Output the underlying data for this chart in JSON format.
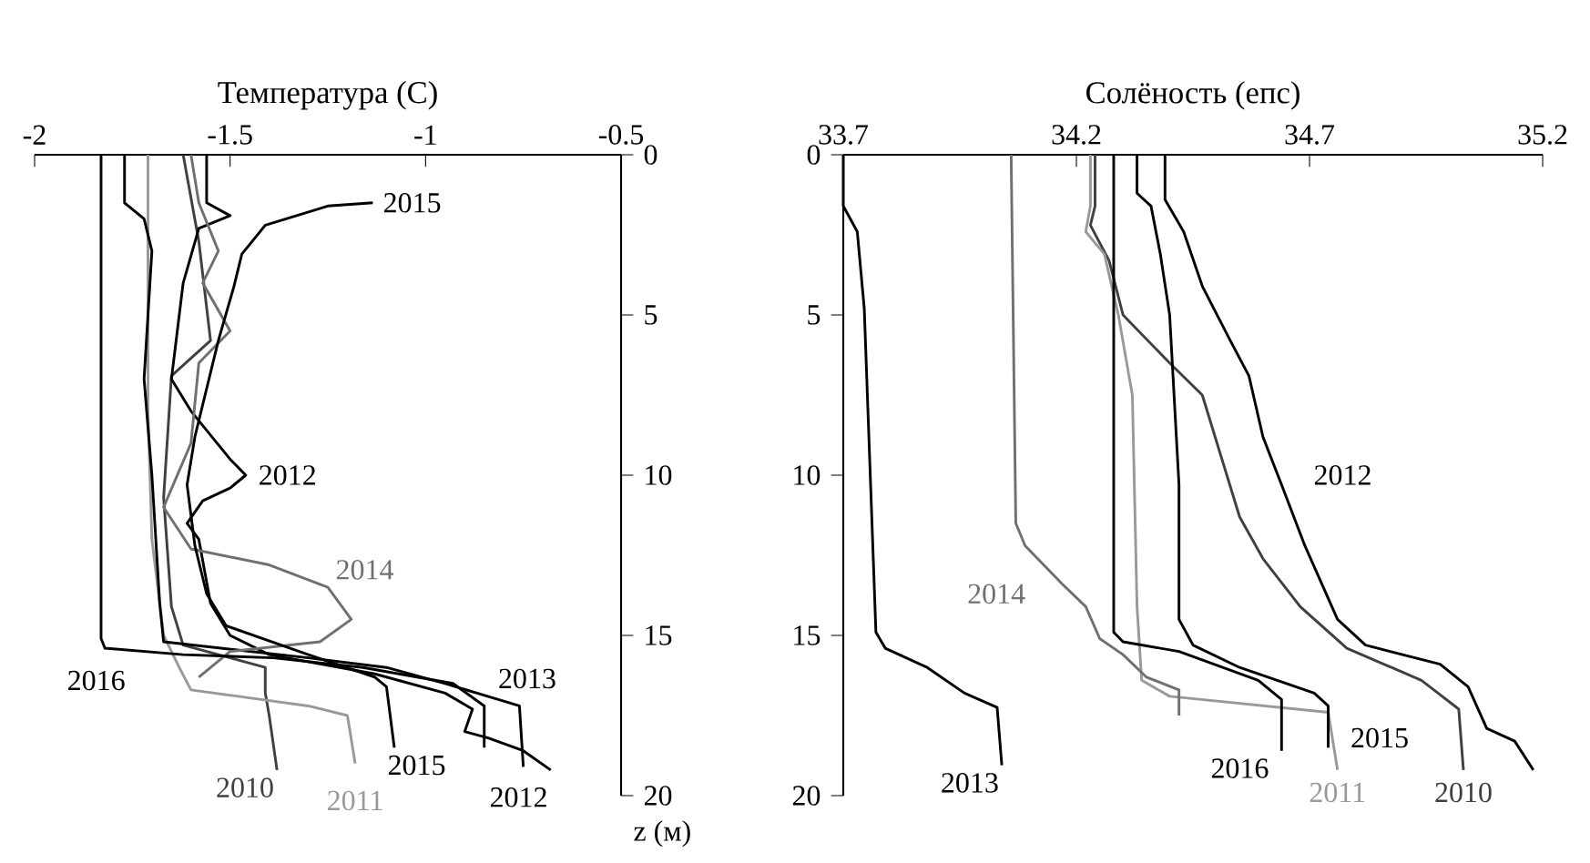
{
  "chart_data": [
    {
      "type": "line",
      "xlabel": "Температура (С)",
      "ylabel": "z (м)",
      "xlim": [
        -2,
        -0.5
      ],
      "xticks": [
        -2,
        -1.5,
        -1,
        -0.5
      ],
      "ylim": [
        20,
        0
      ],
      "yticks": [
        0,
        5,
        10,
        15,
        20
      ],
      "series": [
        {
          "name": "2010",
          "color": "#404040",
          "x": [
            -1.62,
            -1.58,
            -1.55,
            -1.65,
            -1.67,
            -1.65,
            -1.62,
            -1.41,
            -1.41,
            -1.4,
            -1.38
          ],
          "values": [
            0,
            2.7,
            5.8,
            6.9,
            10.7,
            14.1,
            15.3,
            16,
            16.8,
            17.5,
            19.2
          ]
        },
        {
          "name": "2011",
          "color": "#999999",
          "x": [
            -1.71,
            -1.71,
            -1.7,
            -1.67,
            -1.63,
            -1.6,
            -1.3,
            -1.2,
            -1.18
          ],
          "values": [
            0,
            8,
            12,
            15,
            16,
            16.7,
            17.2,
            17.5,
            19
          ]
        },
        {
          "name": "2012",
          "color": "#000000",
          "x": [
            -1.56,
            -1.56,
            -1.5,
            -1.58,
            -1.62,
            -1.65,
            -1.6,
            -1.5,
            -1.46,
            -1.5,
            -1.57,
            -1.61,
            -1.58,
            -1.55,
            -1.5,
            -1.4,
            -1.13,
            -0.95,
            -0.88,
            -0.9,
            -0.84,
            -0.75,
            -0.68
          ],
          "values": [
            0,
            1.5,
            1.9,
            2.3,
            4,
            7,
            8,
            9.5,
            10,
            10.4,
            10.8,
            11.5,
            12,
            14,
            15,
            15.6,
            16.2,
            16.8,
            17.3,
            18,
            18.2,
            18.6,
            19.2
          ]
        },
        {
          "name": "2013",
          "color": "#000000",
          "x": [
            -1.77,
            -1.77,
            -1.72,
            -1.7,
            -1.72,
            -1.7,
            -1.68,
            -1.67,
            -1.3,
            -1.1,
            -0.95,
            -0.76,
            -0.75
          ],
          "values": [
            0,
            1.5,
            2,
            3,
            7,
            10,
            14,
            15.2,
            15.7,
            16,
            16.5,
            17.2,
            19.1
          ]
        },
        {
          "name": "2014",
          "color": "#707070",
          "x": [
            -1.6,
            -1.58,
            -1.53,
            -1.57,
            -1.5,
            -1.58,
            -1.6,
            -1.67,
            -1.6,
            -1.4,
            -1.25,
            -1.19,
            -1.27,
            -1.5,
            -1.58
          ],
          "values": [
            0,
            1.5,
            3,
            4,
            5.5,
            6.5,
            9,
            11,
            12.3,
            12.8,
            13.5,
            14.5,
            15.2,
            15.5,
            16.3
          ]
        },
        {
          "name": "2015",
          "color": "#000000",
          "x": [
            -1.135,
            -1.25,
            -1.41,
            -1.47,
            -1.49,
            -1.53,
            -1.59,
            -1.61,
            -1.59,
            -1.56,
            -1.51,
            -1.3,
            -1.13,
            -1.1,
            -1.08
          ],
          "values": [
            1.5,
            1.6,
            2.2,
            3.1,
            4.1,
            5.8,
            8.8,
            10.3,
            12.2,
            13.7,
            14.7,
            15.6,
            16.3,
            16.6,
            18.5
          ]
        },
        {
          "name": "2016",
          "color": "#000000",
          "x": [
            -1.83,
            -1.83,
            -1.82,
            -1.62,
            -1.39,
            -1.16,
            -0.93,
            -0.85,
            -0.85
          ],
          "values": [
            0,
            15.1,
            15.4,
            15.6,
            15.7,
            16,
            16.5,
            17.2,
            18.5
          ]
        }
      ]
    },
    {
      "type": "line",
      "xlabel": "Солёность (епс)",
      "xlim": [
        33.7,
        35.2
      ],
      "xticks": [
        33.7,
        34.2,
        34.7,
        35.2
      ],
      "ylim": [
        20,
        0
      ],
      "yticks": [
        0,
        5,
        10,
        15,
        20
      ],
      "series": [
        {
          "name": "2010",
          "color": "#404040",
          "x": [
            34.24,
            34.24,
            34.23,
            34.27,
            34.3,
            34.4,
            34.47,
            34.51,
            34.55,
            34.6,
            34.68,
            34.78,
            34.94,
            35.02,
            35.03
          ],
          "values": [
            0,
            1.6,
            2.2,
            3.3,
            5,
            6.5,
            7.5,
            9.4,
            11.3,
            12.6,
            14.1,
            15.4,
            16.4,
            17.3,
            19.2
          ]
        },
        {
          "name": "2011",
          "color": "#999999",
          "x": [
            34.23,
            34.23,
            34.22,
            34.26,
            34.29,
            34.32,
            34.33,
            34.34,
            34.4,
            34.74,
            34.76
          ],
          "values": [
            0,
            1.6,
            2.4,
            3.1,
            5,
            7.5,
            14.1,
            16.4,
            16.9,
            17.4,
            19.2
          ]
        },
        {
          "name": "2012",
          "color": "#000000",
          "x": [
            34.39,
            34.39,
            34.43,
            34.47,
            34.53,
            34.57,
            34.6,
            34.64,
            34.69,
            34.76,
            34.82,
            34.98,
            35.04,
            35.08,
            35.14,
            35.18
          ],
          "values": [
            0,
            1.4,
            2.4,
            4.1,
            5.8,
            6.9,
            8.8,
            10.3,
            12.2,
            14.5,
            15.3,
            15.9,
            16.6,
            17.9,
            18.3,
            19.2
          ]
        },
        {
          "name": "2013",
          "color": "#000000",
          "x": [
            33.7,
            33.7,
            33.73,
            33.745,
            33.77,
            33.79,
            33.88,
            33.96,
            34.03,
            34.04
          ],
          "values": [
            0,
            1.6,
            2.4,
            4.8,
            14.9,
            15.4,
            16,
            16.8,
            17.25,
            19.05
          ]
        },
        {
          "name": "2014",
          "color": "#707070",
          "x": [
            34.06,
            34.07,
            34.09,
            34.17,
            34.22,
            34.25,
            34.3,
            34.35,
            34.42,
            34.42
          ],
          "values": [
            0,
            11.5,
            12.2,
            13.4,
            14.1,
            15.1,
            15.6,
            16.3,
            16.7,
            17.5
          ]
        },
        {
          "name": "2015",
          "color": "#000000",
          "x": [
            34.33,
            34.33,
            34.36,
            34.38,
            34.4,
            34.42,
            34.42,
            34.45,
            34.55,
            34.71,
            34.74,
            34.74
          ],
          "values": [
            0,
            1.2,
            1.6,
            3.1,
            5,
            10.3,
            14.5,
            15.3,
            16,
            16.8,
            17.2,
            18.5
          ]
        },
        {
          "name": "2016",
          "color": "#000000",
          "x": [
            34.28,
            34.28,
            34.3,
            34.42,
            34.59,
            34.64,
            34.64
          ],
          "values": [
            0,
            14.9,
            15.2,
            15.5,
            16.4,
            17,
            18.6
          ]
        }
      ]
    }
  ]
}
